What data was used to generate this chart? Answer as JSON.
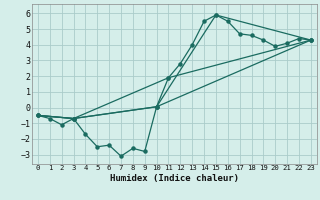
{
  "title": "",
  "xlabel": "Humidex (Indice chaleur)",
  "ylabel": "",
  "background_color": "#d5eeea",
  "grid_color": "#aaccca",
  "line_color": "#1a6b60",
  "xlim": [
    -0.5,
    23.5
  ],
  "ylim": [
    -3.6,
    6.6
  ],
  "xticks": [
    0,
    1,
    2,
    3,
    4,
    5,
    6,
    7,
    8,
    9,
    10,
    11,
    12,
    13,
    14,
    15,
    16,
    17,
    18,
    19,
    20,
    21,
    22,
    23
  ],
  "yticks": [
    -3,
    -2,
    -1,
    0,
    1,
    2,
    3,
    4,
    5,
    6
  ],
  "series": [
    {
      "x": [
        0,
        1,
        2,
        3,
        4,
        5,
        6,
        7,
        8,
        9,
        10,
        11,
        12,
        13,
        14,
        15,
        16,
        17,
        18,
        19,
        20,
        21,
        22,
        23
      ],
      "y": [
        -0.5,
        -0.7,
        -1.1,
        -0.7,
        -1.7,
        -2.5,
        -2.4,
        -3.1,
        -2.6,
        -2.8,
        0.05,
        1.9,
        2.8,
        4.0,
        5.5,
        5.9,
        5.5,
        4.7,
        4.6,
        4.3,
        3.9,
        4.1,
        4.4,
        4.3
      ]
    },
    {
      "x": [
        0,
        3,
        10,
        15,
        23
      ],
      "y": [
        -0.5,
        -0.7,
        0.05,
        5.9,
        4.3
      ]
    },
    {
      "x": [
        0,
        3,
        11,
        23
      ],
      "y": [
        -0.5,
        -0.7,
        1.9,
        4.3
      ]
    },
    {
      "x": [
        0,
        3,
        10,
        23
      ],
      "y": [
        -0.5,
        -0.7,
        0.05,
        4.3
      ]
    }
  ]
}
